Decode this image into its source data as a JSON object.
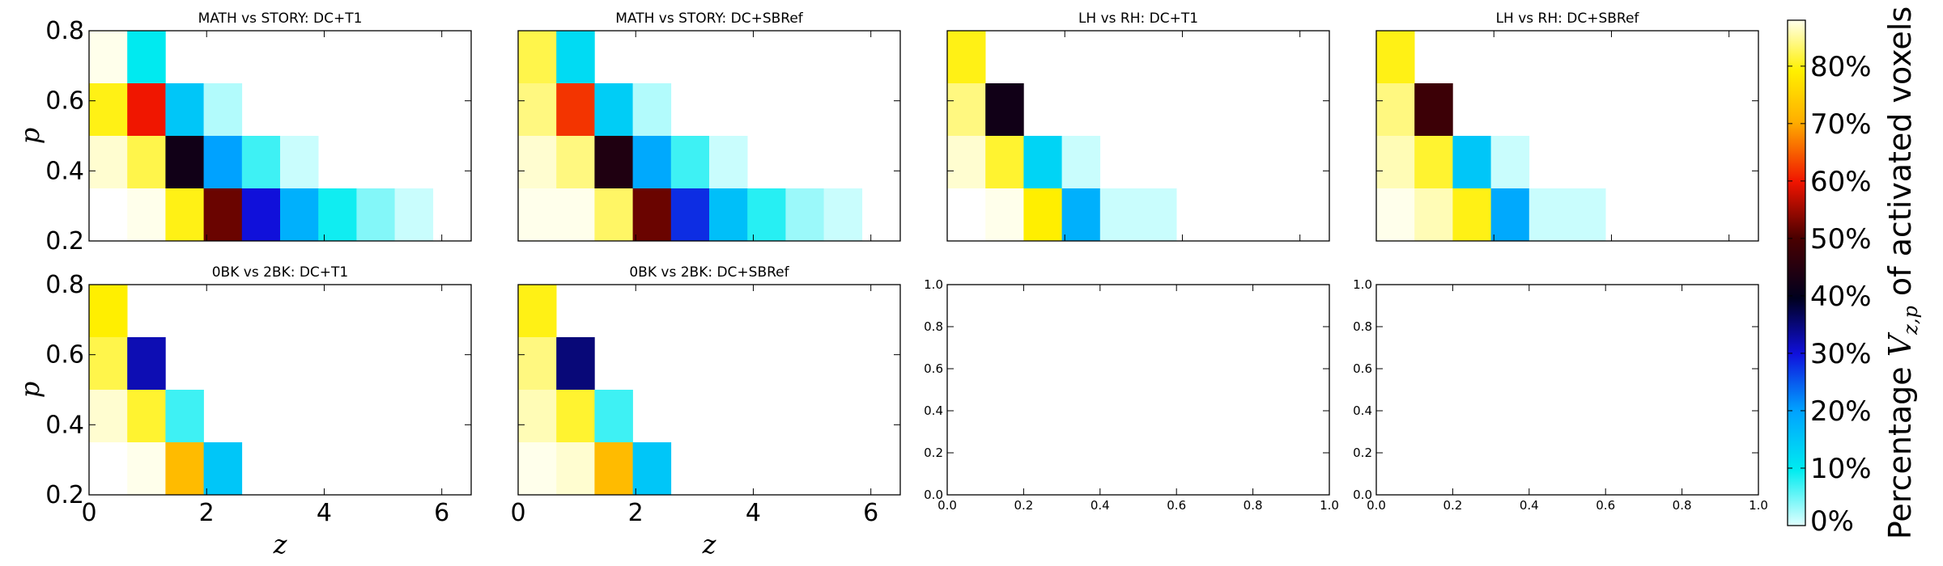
{
  "chart_data": {
    "type": "heatmap",
    "colormap": "gist_ncar-like (white → cyan → blue → black → dark red → red → orange → yellow → pale yellow)",
    "colorbar": {
      "label_prefix": "Percentage ",
      "label_math": "V",
      "label_sub": "z,p",
      "label_suffix": " of activated voxels",
      "vmin": 0,
      "vmax": 88,
      "ticks": [
        "0%",
        "10%",
        "20%",
        "30%",
        "40%",
        "50%",
        "60%",
        "70%",
        "80%"
      ]
    },
    "xlabel": "z",
    "ylabel": "p",
    "z_edges": [
      0,
      0.65,
      1.3,
      1.95,
      2.6,
      3.25,
      3.9,
      4.55,
      5.2,
      5.85,
      6.5
    ],
    "p_edges": [
      0.2,
      0.35,
      0.5,
      0.65,
      0.8
    ],
    "xticks": [
      "0",
      "2",
      "4",
      "6"
    ],
    "yticks": [
      "0.2",
      "0.4",
      "0.6",
      "0.8"
    ],
    "empty_ticks": [
      "0.0",
      "0.2",
      "0.4",
      "0.6",
      "0.8",
      "1.0"
    ],
    "panels": [
      {
        "title": "MATH vs STORY: DC+T1",
        "empty": false,
        "rows": [
          [
            88,
            10
          ],
          [
            80,
            60,
            15,
            2
          ],
          [
            87,
            82,
            42,
            20,
            7,
            1
          ],
          [
            0,
            88,
            80,
            52,
            30,
            18,
            9,
            4,
            1
          ]
        ]
      },
      {
        "title": "MATH vs STORY: DC+SBRef",
        "empty": false,
        "rows": [
          [
            82,
            12
          ],
          [
            84,
            62,
            14,
            2
          ],
          [
            87,
            84,
            44,
            19,
            7,
            1
          ],
          [
            88,
            88,
            83,
            52,
            28,
            16,
            8,
            3,
            1
          ]
        ]
      },
      {
        "title": "LH vs RH: DC+T1",
        "empty": false,
        "rows": [
          [
            80
          ],
          [
            84,
            42
          ],
          [
            87,
            81,
            13,
            1
          ],
          [
            0,
            88,
            79,
            18,
            1,
            1
          ]
        ]
      },
      {
        "title": "LH vs RH: DC+SBRef",
        "empty": false,
        "rows": [
          [
            80
          ],
          [
            84,
            48
          ],
          [
            86,
            81,
            15,
            1
          ],
          [
            88,
            86,
            80,
            19,
            1,
            1
          ]
        ]
      },
      {
        "title": "0BK vs 2BK: DC+T1",
        "empty": false,
        "rows": [
          [
            79
          ],
          [
            82,
            32
          ],
          [
            87,
            81,
            7
          ],
          [
            0,
            88,
            72,
            15
          ]
        ]
      },
      {
        "title": "0BK vs 2BK: DC+SBRef",
        "empty": false,
        "rows": [
          [
            80
          ],
          [
            84,
            35
          ],
          [
            86,
            81,
            7
          ],
          [
            88,
            87,
            72,
            15
          ]
        ]
      },
      {
        "title": "",
        "empty": true,
        "rows": []
      },
      {
        "title": "",
        "empty": true,
        "rows": []
      }
    ]
  }
}
